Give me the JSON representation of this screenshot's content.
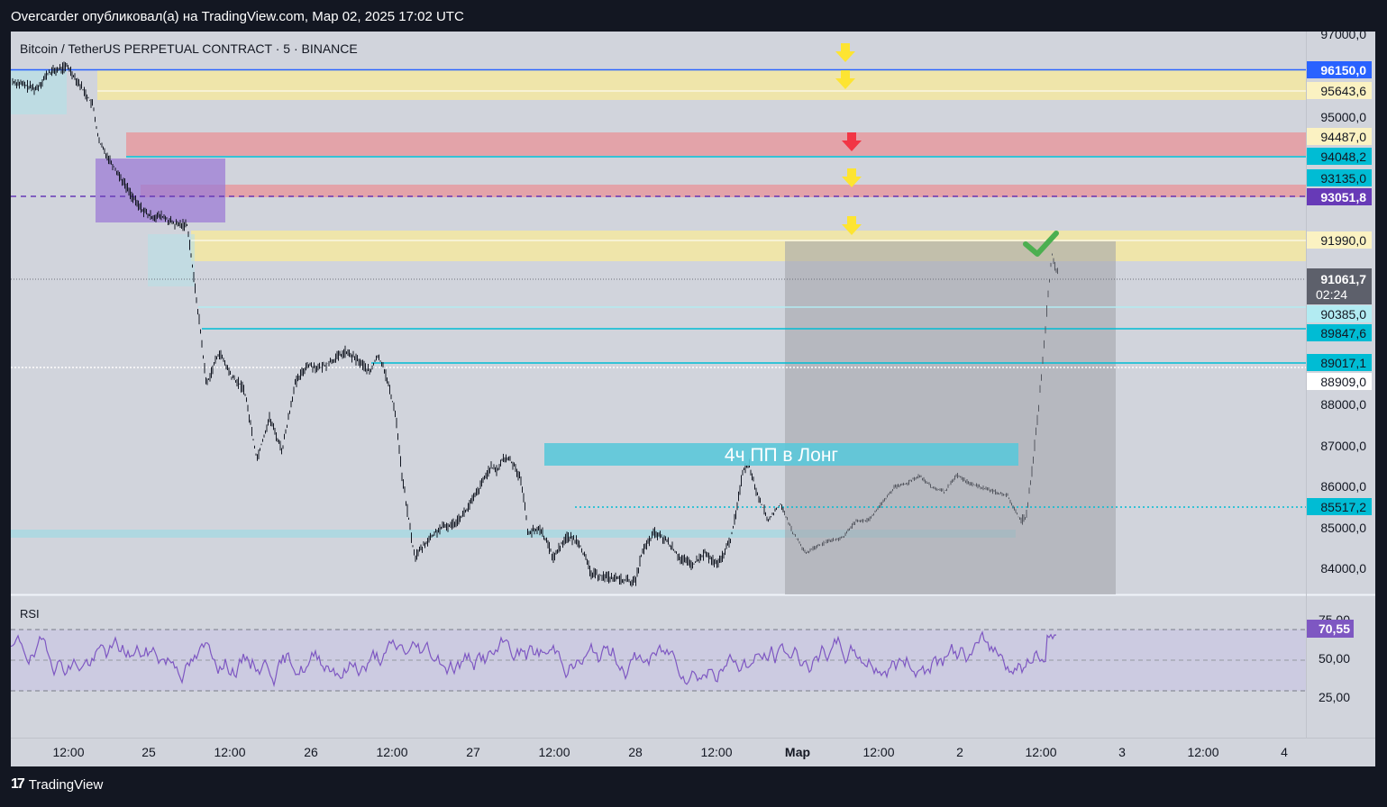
{
  "header": {
    "publish_line": "Overcarder опубликовал(а) на TradingView.com, Мар 02, 2025 17:02 UTC"
  },
  "footer": {
    "brand": "TradingView",
    "logo_glyph": "17"
  },
  "colors": {
    "background": "#d1d4dc",
    "candles": "#131722",
    "rsi_line": "#7e57c2",
    "yellow_zone": "#f4e7a1",
    "red_zone": "#e69aa0",
    "purple_box": "#9c7cd6",
    "cyan_label": "#00bcd4",
    "blue_label": "#2962ff",
    "purple_label": "#673ab7",
    "signal_arrow_yellow": "#fde432",
    "signal_arrow_red": "#f23645",
    "checkmark": "#4caf50"
  },
  "chart_data": {
    "type": "candlestick",
    "symbol_title": "Bitcoin / TetherUS PERPETUAL CONTRACT · 5 · BINANCE",
    "ylim": [
      83300,
      97000
    ],
    "y_ticks": [
      {
        "value": 97000,
        "label": "97000,0"
      },
      {
        "value": 95000,
        "label": "95000,0"
      },
      {
        "value": 88000,
        "label": "88000,0"
      },
      {
        "value": 87000,
        "label": "87000,0"
      },
      {
        "value": 86000,
        "label": "86000,0"
      },
      {
        "value": 85000,
        "label": "85000,0"
      },
      {
        "value": 84000,
        "label": "84000,0"
      }
    ],
    "price_labels": [
      {
        "value": 96150.0,
        "label": "96150,0",
        "style": "blue"
      },
      {
        "value": 95643.6,
        "label": "95643,6",
        "style": "yellow"
      },
      {
        "value": 94487.0,
        "label": "94487,0",
        "style": "yellow"
      },
      {
        "value": 94048.2,
        "label": "94048,2",
        "style": "cyan"
      },
      {
        "value": 93135.0,
        "label": "93135,0",
        "style": "cyan"
      },
      {
        "value": 93051.8,
        "label": "93051,8",
        "style": "purple"
      },
      {
        "value": 91990.0,
        "label": "91990,0",
        "style": "yellow"
      },
      {
        "value": 91061.7,
        "label": "91061,7",
        "style": "current",
        "countdown": "02:24"
      },
      {
        "value": 90385.0,
        "label": "90385,0",
        "style": "lightcyan"
      },
      {
        "value": 89847.6,
        "label": "89847,6",
        "style": "cyan"
      },
      {
        "value": 89017.1,
        "label": "89017,1",
        "style": "cyan"
      },
      {
        "value": 88909.0,
        "label": "88909,0",
        "style": "white"
      },
      {
        "value": 85517.2,
        "label": "85517,2",
        "style": "cyan"
      }
    ],
    "x_ticks": [
      "12:00",
      "25",
      "12:00",
      "26",
      "12:00",
      "27",
      "12:00",
      "28",
      "12:00",
      "Мар",
      "12:00",
      "2",
      "12:00",
      "3",
      "12:00",
      "4"
    ],
    "annotation": "4ч ПП в Лонг",
    "price_path": [
      [
        0,
        95800
      ],
      [
        4,
        95600
      ],
      [
        6,
        96000
      ],
      [
        9,
        96150
      ],
      [
        11,
        95700
      ],
      [
        13,
        95200
      ],
      [
        14,
        94300
      ],
      [
        16,
        93800
      ],
      [
        18,
        93300
      ],
      [
        20,
        92800
      ],
      [
        22,
        92500
      ],
      [
        24,
        92500
      ],
      [
        26,
        92300
      ],
      [
        28,
        92300
      ],
      [
        29,
        91000
      ],
      [
        30,
        89800
      ],
      [
        31,
        88400
      ],
      [
        33,
        89200
      ],
      [
        35,
        88600
      ],
      [
        37,
        88300
      ],
      [
        39,
        86600
      ],
      [
        41,
        87600
      ],
      [
        43,
        86800
      ],
      [
        45,
        88400
      ],
      [
        47,
        88900
      ],
      [
        49,
        88800
      ],
      [
        51,
        89000
      ],
      [
        53,
        89200
      ],
      [
        55,
        89000
      ],
      [
        57,
        88700
      ],
      [
        58,
        89100
      ],
      [
        59,
        88900
      ],
      [
        61,
        87700
      ],
      [
        62,
        86200
      ],
      [
        63,
        85200
      ],
      [
        64,
        84200
      ],
      [
        66,
        84600
      ],
      [
        68,
        84900
      ],
      [
        70,
        85000
      ],
      [
        72,
        85300
      ],
      [
        74,
        85800
      ],
      [
        76,
        86400
      ],
      [
        77,
        86300
      ],
      [
        78,
        86600
      ],
      [
        79,
        86600
      ],
      [
        80,
        86400
      ],
      [
        81,
        86000
      ],
      [
        82,
        84800
      ],
      [
        84,
        84900
      ],
      [
        86,
        84200
      ],
      [
        88,
        84700
      ],
      [
        90,
        84600
      ],
      [
        92,
        83800
      ],
      [
        99,
        83600
      ],
      [
        100,
        84300
      ],
      [
        102,
        84800
      ],
      [
        104,
        84600
      ],
      [
        106,
        84200
      ],
      [
        108,
        84000
      ],
      [
        110,
        84300
      ],
      [
        112,
        84000
      ],
      [
        114,
        84600
      ],
      [
        115,
        85300
      ],
      [
        116,
        86300
      ],
      [
        117,
        86500
      ],
      [
        118,
        85900
      ],
      [
        120,
        85100
      ],
      [
        122,
        85500
      ],
      [
        124,
        84800
      ],
      [
        126,
        84300
      ],
      [
        128,
        84500
      ],
      [
        130,
        84600
      ],
      [
        132,
        84700
      ],
      [
        134,
        85100
      ],
      [
        136,
        85100
      ],
      [
        138,
        85500
      ],
      [
        140,
        85900
      ],
      [
        142,
        86000
      ],
      [
        144,
        86200
      ],
      [
        146,
        85900
      ],
      [
        148,
        85800
      ],
      [
        150,
        86200
      ],
      [
        152,
        86000
      ],
      [
        154,
        85900
      ],
      [
        156,
        85800
      ],
      [
        158,
        85700
      ],
      [
        160,
        85100
      ],
      [
        161,
        85200
      ],
      [
        162,
        86500
      ],
      [
        163,
        88000
      ],
      [
        164,
        89800
      ],
      [
        165,
        91600
      ],
      [
        166,
        91061
      ]
    ],
    "rsi": {
      "label": "RSI",
      "current": 70.55,
      "current_label": "70,55",
      "levels": [
        {
          "value": 75,
          "label": "75,00"
        },
        {
          "value": 50,
          "label": "50,00"
        },
        {
          "value": 25,
          "label": "25,00"
        }
      ]
    }
  }
}
